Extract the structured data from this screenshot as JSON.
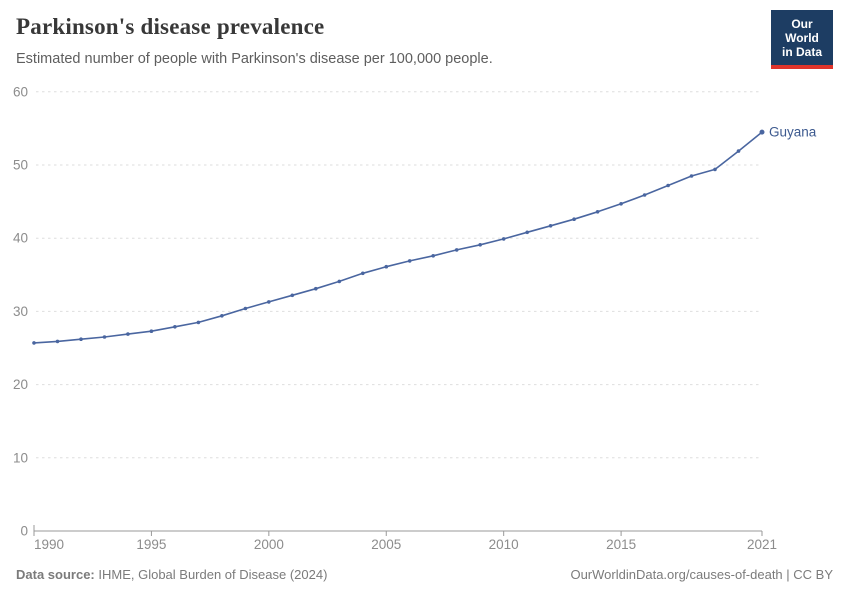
{
  "header": {
    "title": "Parkinson's disease prevalence",
    "subtitle": "Estimated number of people with Parkinson's disease per 100,000 people."
  },
  "logo": {
    "line1": "Our World",
    "line2": "in Data"
  },
  "chart_data": {
    "type": "line",
    "title": "Parkinson's disease prevalence",
    "subtitle": "Estimated number of people with Parkinson's disease per 100,000 people.",
    "xlabel": "",
    "ylabel": "",
    "xlim": [
      1990,
      2021
    ],
    "ylim": [
      0,
      60
    ],
    "yticks": [
      0,
      10,
      20,
      30,
      40,
      50,
      60
    ],
    "xticks": [
      1990,
      1995,
      2000,
      2005,
      2010,
      2015,
      2021
    ],
    "grid": "horizontal-dashed",
    "legend_position": "end-of-line-label",
    "series": [
      {
        "name": "Guyana",
        "x": [
          1990,
          1991,
          1992,
          1993,
          1994,
          1995,
          1996,
          1997,
          1998,
          1999,
          2000,
          2001,
          2002,
          2003,
          2004,
          2005,
          2006,
          2007,
          2008,
          2009,
          2010,
          2011,
          2012,
          2013,
          2014,
          2015,
          2016,
          2017,
          2018,
          2019,
          2020,
          2021
        ],
        "values": [
          25.7,
          25.9,
          26.2,
          26.5,
          26.9,
          27.3,
          27.9,
          28.5,
          29.4,
          30.4,
          31.3,
          32.2,
          33.1,
          34.1,
          35.2,
          36.1,
          36.9,
          37.6,
          38.4,
          39.1,
          39.9,
          40.8,
          41.7,
          42.6,
          43.6,
          44.7,
          45.9,
          47.2,
          48.5,
          49.4,
          51.9,
          54.5
        ]
      }
    ]
  },
  "colors": {
    "line": "#4a66a0",
    "series_label": "#3d5a8f",
    "grid": "#dedede",
    "axis": "#999999",
    "tick_label": "#8c8c8c",
    "title": "#383838",
    "subtitle": "#5e5e5e",
    "footer": "#7b7b7b",
    "logo_bg": "#1d3d63",
    "logo_accent": "#e0342b"
  },
  "footer": {
    "source_label": "Data source:",
    "source_text": " IHME, Global Burden of Disease (2024)",
    "credit": "OurWorldinData.org/causes-of-death | CC BY"
  }
}
